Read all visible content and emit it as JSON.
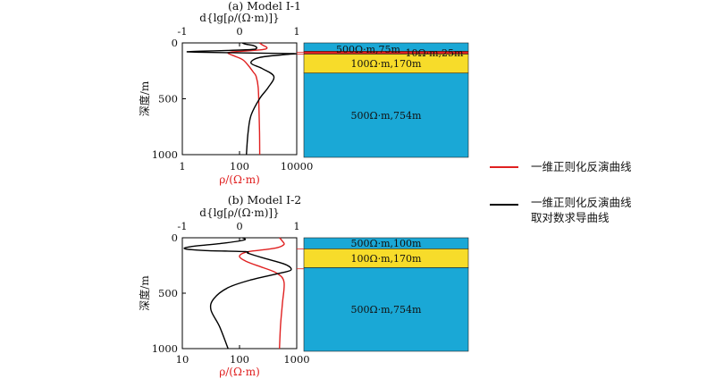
{
  "legend": {
    "red_label": "一维正则化反演曲线",
    "black_label_line1": "一维正则化反演曲线",
    "black_label_line2": "取对数求导曲线",
    "red_color": "#e02020",
    "black_color": "#000000"
  },
  "chart_data": [
    {
      "type": "line",
      "title": "(a) Model I-1",
      "top_axis_label": "d{lg[ρ/(Ω·m)]}",
      "bottom_axis_label": "ρ/(Ω·m)",
      "y_axis_label": "深度/m",
      "y_ticks": [
        "0",
        "500",
        "1000"
      ],
      "ylim": [
        0,
        1000
      ],
      "top_ticks": [
        "-1",
        "0",
        "1"
      ],
      "top_lim": [
        -1,
        1
      ],
      "bottom_ticks": [
        "1",
        "100",
        "10000"
      ],
      "bottom_lim": [
        1,
        10000
      ],
      "bottom_log": true,
      "series": [
        {
          "color": "#e02020",
          "axis": "bottom",
          "depth": [
            0,
            20,
            40,
            55,
            65,
            75,
            82,
            90,
            100,
            120,
            150,
            200,
            260,
            300,
            400,
            600,
            800,
            1000
          ],
          "values": [
            500,
            650,
            900,
            800,
            420,
            110,
            50,
            40,
            45,
            70,
            130,
            200,
            300,
            380,
            450,
            480,
            500,
            510
          ]
        },
        {
          "color": "#000000",
          "axis": "top",
          "depth": [
            0,
            10,
            25,
            45,
            60,
            70,
            78,
            83,
            90,
            96,
            105,
            130,
            180,
            230,
            300,
            400,
            500,
            650,
            800,
            1000
          ],
          "values": [
            0.05,
            0.1,
            0.25,
            0.3,
            0.2,
            -0.4,
            -0.9,
            -0.7,
            0.2,
            0.95,
            0.8,
            0.35,
            0.2,
            0.4,
            0.6,
            0.5,
            0.35,
            0.2,
            0.15,
            0.12
          ]
        }
      ],
      "model_layers": [
        {
          "label": "500Ω·m,75m",
          "label2": "10Ω·m,25m",
          "thickness": 75,
          "color": "#1aa8d6"
        },
        {
          "label": "10Ω·m,25m",
          "thickness": 25,
          "color": "#e02020"
        },
        {
          "label": "100Ω·m,170m",
          "thickness": 170,
          "color": "#f7dc2a"
        },
        {
          "label": "500Ω·m,754m",
          "thickness": 754,
          "color": "#1aa8d6"
        }
      ]
    },
    {
      "type": "line",
      "title": "(b) Model I-2",
      "top_axis_label": "d{lg[ρ/(Ω·m)]}",
      "bottom_axis_label": "ρ/(Ω·m)",
      "y_axis_label": "深度/m",
      "y_ticks": [
        "0",
        "500",
        "1000"
      ],
      "ylim": [
        0,
        1000
      ],
      "top_ticks": [
        "-1",
        "0",
        "1"
      ],
      "top_lim": [
        -1,
        1
      ],
      "bottom_ticks": [
        "10",
        "100",
        "1000"
      ],
      "bottom_lim": [
        10,
        1000
      ],
      "bottom_log": true,
      "series": [
        {
          "color": "#e02020",
          "axis": "bottom",
          "depth": [
            0,
            30,
            60,
            90,
            110,
            130,
            170,
            220,
            270,
            320,
            400,
            600,
            800,
            1000
          ],
          "values": [
            500,
            560,
            600,
            450,
            250,
            130,
            100,
            140,
            260,
            450,
            600,
            560,
            520,
            500
          ]
        },
        {
          "color": "#000000",
          "axis": "top",
          "depth": [
            0,
            20,
            50,
            80,
            100,
            115,
            125,
            140,
            180,
            240,
            290,
            320,
            380,
            450,
            550,
            650,
            800,
            1000
          ],
          "values": [
            0.05,
            0.08,
            -0.3,
            -0.85,
            -0.95,
            -0.6,
            0.1,
            0.15,
            0.4,
            0.8,
            0.9,
            0.7,
            0.2,
            -0.2,
            -0.45,
            -0.5,
            -0.35,
            -0.2
          ]
        }
      ],
      "model_layers": [
        {
          "label": "500Ω·m,100m",
          "thickness": 100,
          "color": "#1aa8d6"
        },
        {
          "label": "100Ω·m,170m",
          "thickness": 170,
          "color": "#f7dc2a"
        },
        {
          "label": "500Ω·m,754m",
          "thickness": 754,
          "color": "#1aa8d6"
        }
      ]
    }
  ]
}
